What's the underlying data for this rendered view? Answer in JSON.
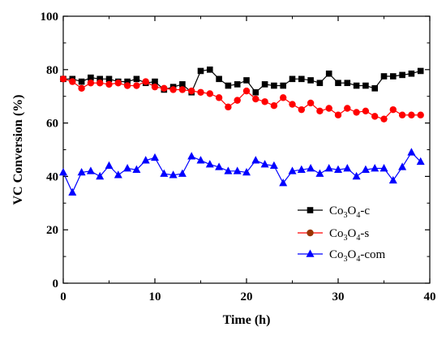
{
  "chart_data": {
    "type": "line",
    "xlabel": "Time (h)",
    "ylabel": "VC Conversion (%)",
    "xlim": [
      0,
      40
    ],
    "ylim": [
      0,
      100
    ],
    "xticks": [
      0,
      10,
      20,
      30,
      40
    ],
    "yticks": [
      0,
      20,
      40,
      60,
      80,
      100
    ],
    "legend_position": "bottom-right",
    "grid": false,
    "series": [
      {
        "name": "Co3O4-c",
        "legend": {
          "p1": "Co",
          "s1": "3",
          "p2": "O",
          "s2": "4",
          "p3": "-c"
        },
        "marker": "square",
        "color": "#000000",
        "marker_color": "#000000",
        "x": [
          0,
          1,
          2,
          3,
          4,
          5,
          6,
          7,
          8,
          9,
          10,
          11,
          12,
          13,
          14,
          15,
          16,
          17,
          18,
          19,
          20,
          21,
          22,
          23,
          24,
          25,
          26,
          27,
          28,
          29,
          30,
          31,
          32,
          33,
          34,
          35,
          36,
          37,
          38,
          39
        ],
        "y": [
          76.5,
          76.5,
          75.5,
          77,
          76.5,
          76.5,
          75.5,
          75.5,
          76.5,
          75,
          75.5,
          72.5,
          73.5,
          74.5,
          71.5,
          79.5,
          80,
          76.5,
          74,
          74.5,
          76,
          71.5,
          74.5,
          74,
          74,
          76.5,
          76.5,
          76,
          75,
          78.5,
          75,
          75,
          74,
          74,
          73,
          77.5,
          77.5,
          78,
          78.5,
          79.5
        ]
      },
      {
        "name": "Co3O4-s",
        "legend": {
          "p1": "Co",
          "s1": "3",
          "p2": "O",
          "s2": "4",
          "p3": "-s"
        },
        "marker": "circle",
        "color": "#ff0000",
        "marker_color": "#ff0000",
        "legend_marker_color": "#993300",
        "x": [
          0,
          1,
          2,
          3,
          4,
          5,
          6,
          7,
          8,
          9,
          10,
          11,
          12,
          13,
          14,
          15,
          16,
          17,
          18,
          19,
          20,
          21,
          22,
          23,
          24,
          25,
          26,
          27,
          28,
          29,
          30,
          31,
          32,
          33,
          34,
          35,
          36,
          37,
          38,
          39
        ],
        "y": [
          76.5,
          75.5,
          73,
          75,
          75,
          74.5,
          75,
          74,
          74,
          75.5,
          73.5,
          73,
          72.5,
          72.5,
          72,
          71.5,
          71,
          69.5,
          66,
          68.5,
          72,
          69,
          68,
          66.5,
          69.5,
          67,
          65,
          67.5,
          64.5,
          65.5,
          63,
          65.5,
          64,
          64.5,
          62.5,
          61.5,
          65,
          63,
          63,
          63
        ]
      },
      {
        "name": "Co3O4-com",
        "legend": {
          "p1": "Co",
          "s1": "3",
          "p2": "O",
          "s2": "4",
          "p3": "-com"
        },
        "marker": "triangle",
        "color": "#0000ff",
        "marker_color": "#0000ff",
        "x": [
          0,
          1,
          2,
          3,
          4,
          5,
          6,
          7,
          8,
          9,
          10,
          11,
          12,
          13,
          14,
          15,
          16,
          17,
          18,
          19,
          20,
          21,
          22,
          23,
          24,
          25,
          26,
          27,
          28,
          29,
          30,
          31,
          32,
          33,
          34,
          35,
          36,
          37,
          38,
          39
        ],
        "y": [
          41.5,
          34,
          41.5,
          42,
          40,
          44,
          40.5,
          43,
          42.5,
          46,
          47,
          41,
          40.5,
          41,
          47.5,
          46,
          44.5,
          43.5,
          42,
          42,
          41.5,
          46,
          44.5,
          44,
          37.5,
          42,
          42.5,
          43,
          41,
          43,
          42.5,
          43,
          40,
          42.5,
          43,
          43,
          38.5,
          43.5,
          49,
          45.5
        ]
      }
    ]
  }
}
